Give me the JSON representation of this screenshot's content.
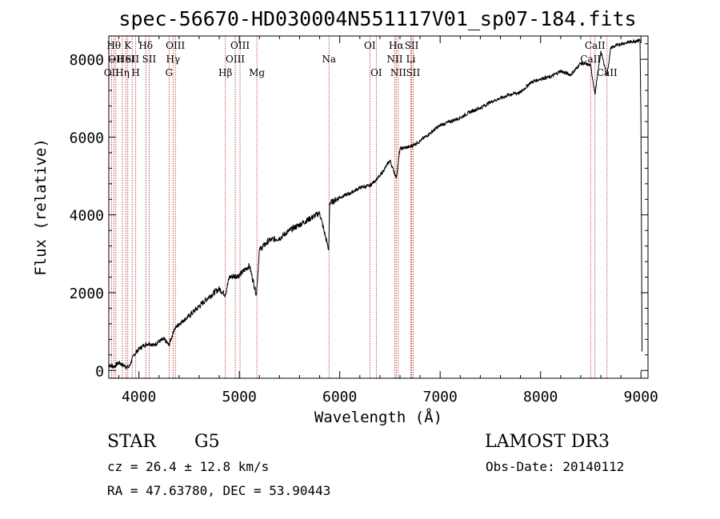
{
  "chart_data": {
    "type": "line",
    "title": "spec-56670-HD030004N551117V01_sp07-184.fits",
    "xlabel": "Wavelength (Å)",
    "ylabel": "Flux (relative)",
    "xlim": [
      3700,
      9070
    ],
    "ylim": [
      -200,
      8600
    ],
    "xticks": [
      4000,
      5000,
      6000,
      7000,
      8000,
      9000
    ],
    "yticks": [
      0,
      2000,
      4000,
      6000,
      8000
    ],
    "series": [
      {
        "name": "flux",
        "x": [
          3700,
          3750,
          3800,
          3850,
          3900,
          3950,
          4000,
          4050,
          4100,
          4150,
          4200,
          4250,
          4300,
          4350,
          4400,
          4450,
          4500,
          4600,
          4700,
          4800,
          4860,
          4900,
          5000,
          5100,
          5170,
          5200,
          5300,
          5400,
          5500,
          5600,
          5700,
          5800,
          5890,
          5900,
          6000,
          6100,
          6200,
          6300,
          6400,
          6500,
          6563,
          6600,
          6700,
          6800,
          6900,
          7000,
          7100,
          7200,
          7300,
          7400,
          7500,
          7600,
          7700,
          7800,
          7900,
          8000,
          8100,
          8200,
          8300,
          8400,
          8498,
          8542,
          8600,
          8662,
          8700,
          8800,
          8900,
          8990,
          9000,
          9010
        ],
        "values": [
          150,
          100,
          200,
          120,
          80,
          400,
          550,
          650,
          700,
          650,
          750,
          800,
          650,
          1050,
          1200,
          1300,
          1400,
          1650,
          1900,
          2100,
          1950,
          2400,
          2450,
          2700,
          1950,
          3100,
          3350,
          3400,
          3600,
          3750,
          3900,
          4050,
          3100,
          4300,
          4450,
          4550,
          4700,
          4750,
          5000,
          5400,
          4950,
          5700,
          5750,
          5900,
          6100,
          6300,
          6400,
          6500,
          6650,
          6750,
          6900,
          7000,
          7100,
          7150,
          7400,
          7500,
          7550,
          7700,
          7600,
          7900,
          7850,
          7100,
          8200,
          7600,
          8300,
          8400,
          8450,
          8500,
          6400,
          500
        ]
      }
    ],
    "lines": [
      {
        "x": 3727,
        "label": "OII",
        "row": 2
      },
      {
        "x": 3750,
        "label": "Hθ",
        "row": 0
      },
      {
        "x": 3770,
        "label": "OII",
        "row": 1
      },
      {
        "x": 3835,
        "label": "Hη",
        "row": 2
      },
      {
        "x": 3869,
        "label": "HeI",
        "row": 1
      },
      {
        "x": 3889,
        "label": "K",
        "row": 0
      },
      {
        "x": 3933,
        "label": "SII",
        "row": 1
      },
      {
        "x": 3968,
        "label": "H",
        "row": 2
      },
      {
        "x": 4068,
        "label": "Hδ",
        "row": 0
      },
      {
        "x": 4102,
        "label": "SII",
        "row": 1
      },
      {
        "x": 4300,
        "label": "G",
        "row": 2
      },
      {
        "x": 4340,
        "label": "Hγ",
        "row": 1
      },
      {
        "x": 4363,
        "label": "OIII",
        "row": 0
      },
      {
        "x": 4861,
        "label": "Hβ",
        "row": 2
      },
      {
        "x": 4959,
        "label": "OIII",
        "row": 1
      },
      {
        "x": 5007,
        "label": "OIII",
        "row": 0
      },
      {
        "x": 5175,
        "label": "Mg",
        "row": 2
      },
      {
        "x": 5893,
        "label": "Na",
        "row": 1
      },
      {
        "x": 6300,
        "label": "OI",
        "row": 0
      },
      {
        "x": 6364,
        "label": "OI",
        "row": 2
      },
      {
        "x": 6548,
        "label": "NII",
        "row": 1
      },
      {
        "x": 6563,
        "label": "Hα",
        "row": 0
      },
      {
        "x": 6583,
        "label": "NII",
        "row": 2
      },
      {
        "x": 6708,
        "label": "Li",
        "row": 1
      },
      {
        "x": 6716,
        "label": "SII",
        "row": 0
      },
      {
        "x": 6731,
        "label": "SII",
        "row": 2
      },
      {
        "x": 8498,
        "label": "CaII",
        "row": 1
      },
      {
        "x": 8542,
        "label": "CaII",
        "row": 0
      },
      {
        "x": 8662,
        "label": "CaII",
        "row": 2
      }
    ]
  },
  "info": {
    "object_type": "STAR",
    "subclass": "G5",
    "survey": "LAMOST DR3",
    "redshift": "cz = 26.4 ± 12.8 km/s",
    "obs_date": "Obs-Date: 20140112",
    "coords": "RA =  47.63780, DEC =  53.90443"
  },
  "colors": {
    "axis": "#000000",
    "spectrum": "#000000",
    "line_marker": "#b22222",
    "background": "#ffffff"
  }
}
